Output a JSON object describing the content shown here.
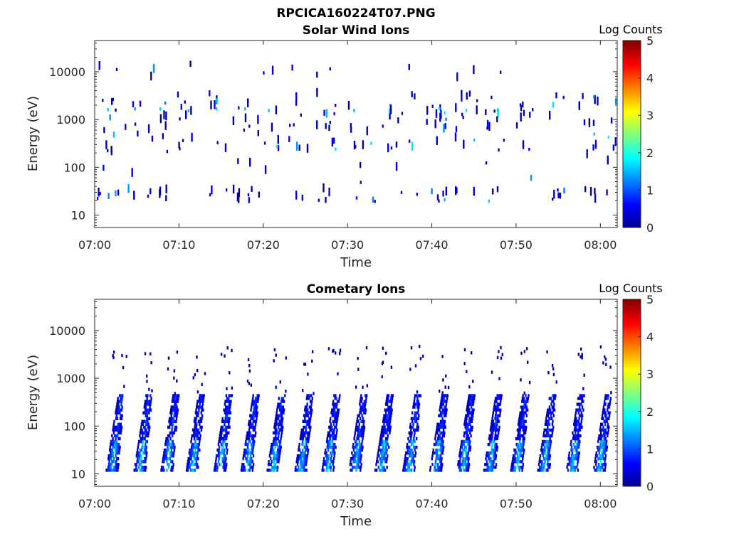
{
  "figure": {
    "filename": "RPCICA160224T07.PNG"
  },
  "chart_data": [
    {
      "type": "heatmap",
      "title": "Solar Wind Ions",
      "xlabel": "Time",
      "ylabel": "Energy (eV)",
      "x_ticks": [
        "07:00",
        "07:10",
        "07:20",
        "07:30",
        "07:40",
        "07:50",
        "08:00"
      ],
      "x_range": [
        "07:00",
        "08:02"
      ],
      "y_ticks": [
        10,
        100,
        1000,
        10000
      ],
      "y_tick_labels": [
        "10",
        "100",
        "1000",
        "10000"
      ],
      "y_range": [
        5.5,
        45000
      ],
      "y_scale": "log",
      "colorbar": {
        "title": "Log Counts",
        "range": [
          0,
          5
        ],
        "ticks": [
          "0",
          "1",
          "2",
          "3",
          "4",
          "5"
        ],
        "colormap": "jet"
      },
      "grid": false,
      "data_description": "Sparse scattered counts (mostly Log Counts 0-1), denser bands near 1000-2000 eV with occasional values up to about 1.8",
      "series": [
        {
          "cluster_times_min": [
            1.5,
            4.5,
            7.5,
            11,
            14.5,
            17.5,
            20.5,
            24,
            27.5,
            31,
            34,
            37,
            40.5,
            44,
            47.5,
            51,
            55,
            58.5,
            61.5
          ]
        }
      ]
    },
    {
      "type": "heatmap",
      "title": "Cometary Ions",
      "xlabel": "Time",
      "ylabel": "Energy (eV)",
      "x_ticks": [
        "07:00",
        "07:10",
        "07:20",
        "07:30",
        "07:40",
        "07:50",
        "08:00"
      ],
      "x_range": [
        "07:00",
        "08:02"
      ],
      "y_ticks": [
        10,
        100,
        1000,
        10000
      ],
      "y_tick_labels": [
        "10",
        "100",
        "1000",
        "10000"
      ],
      "y_range": [
        5.5,
        45000
      ],
      "y_scale": "log",
      "colorbar": {
        "title": "Log Counts",
        "range": [
          0,
          5
        ],
        "ticks": [
          "0",
          "1",
          "2",
          "3",
          "4",
          "5"
        ],
        "colormap": "jet"
      },
      "grid": false,
      "data_description": "Periodic arc-shaped bursts between about 10 and 500 eV roughly every 3.2 minutes, peak Log Counts near 2",
      "series": [
        {
          "burst_times_min": [
            2.5,
            5.8,
            9.0,
            12.0,
            15.3,
            18.5,
            21.6,
            24.9,
            28.1,
            31.3,
            34.4,
            37.7,
            40.9,
            44.1,
            47.3,
            50.5,
            53.7,
            57.1,
            60.3
          ],
          "burst_energy_range_ev": [
            15,
            300
          ],
          "peak_log_counts": 2.0
        }
      ]
    }
  ]
}
